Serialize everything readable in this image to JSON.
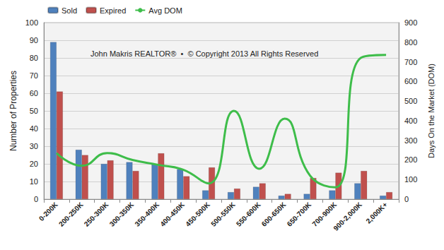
{
  "chart_data": {
    "type": "bar",
    "categories": [
      "0-200K",
      "200-250K",
      "250-300K",
      "300-350K",
      "350-400K",
      "400-450K",
      "450-500K",
      "500-550K",
      "550-600K",
      "600-650K",
      "650-700K",
      "700-900K",
      "900-2,000K",
      "2,000K+"
    ],
    "series": [
      {
        "name": "Sold",
        "type": "bar",
        "color": "#4f81bd",
        "values": [
          89,
          28,
          20,
          21,
          20,
          17,
          5,
          4,
          7,
          2,
          3,
          5,
          9,
          2
        ]
      },
      {
        "name": "Expired",
        "type": "bar",
        "color": "#c0504d",
        "values": [
          61,
          25,
          22,
          16,
          26,
          13,
          18,
          6,
          9,
          3,
          12,
          15,
          16,
          4
        ]
      },
      {
        "name": "Avg DOM",
        "type": "line",
        "axis": "y2",
        "color": "#3ebd4a",
        "marker": "none",
        "line_style": "solid",
        "values": [
          235,
          170,
          235,
          200,
          175,
          150,
          80,
          450,
          155,
          410,
          120,
          60,
          720,
          735
        ]
      }
    ],
    "ylabel": "Number of Properties",
    "y2label": "Days On the Market (DOM)",
    "ylim": [
      0,
      100
    ],
    "yticks": [
      0,
      10,
      20,
      30,
      40,
      50,
      60,
      70,
      80,
      90,
      100
    ],
    "y2lim": [
      0,
      900
    ],
    "y2ticks": [
      0,
      100,
      200,
      300,
      400,
      500,
      600,
      700,
      800,
      900
    ],
    "annotations": [
      "John Makris REALTOR®  •  © Copyright 2013 All Rights Reserved"
    ],
    "grid": true,
    "legend": "top-left"
  }
}
